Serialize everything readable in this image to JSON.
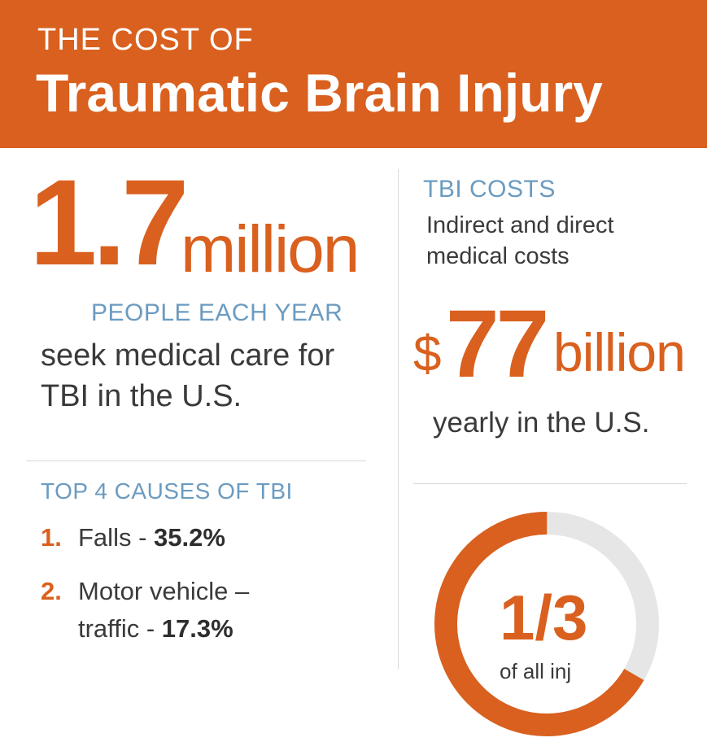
{
  "header": {
    "title_top": "THE COST OF",
    "title_main": "Traumatic Brain Injury",
    "bg_color": "#d9601e"
  },
  "people": {
    "number": "1.7",
    "unit": "million",
    "label": "PEOPLE EACH YEAR",
    "description": "seek medical care for TBI in the U.S."
  },
  "causes": {
    "title": "TOP 4 CAUSES OF TBI",
    "items": [
      {
        "num": "1.",
        "label": "Falls - ",
        "pct": "35.2%"
      },
      {
        "num": "2.",
        "label": "Motor vehicle –",
        "label2": "traffic - ",
        "pct": "17.3%"
      }
    ]
  },
  "costs": {
    "title": "TBI COSTS",
    "subtitle": "Indirect and direct medical costs",
    "currency": "$",
    "amount": "77",
    "unit": "billion",
    "caption": "yearly in the U.S."
  },
  "fraction": {
    "value": "1/3",
    "fill_fraction": 0.3333,
    "caption": "of all inj",
    "accent": "#d9601e",
    "track": "#e6e6e6"
  }
}
